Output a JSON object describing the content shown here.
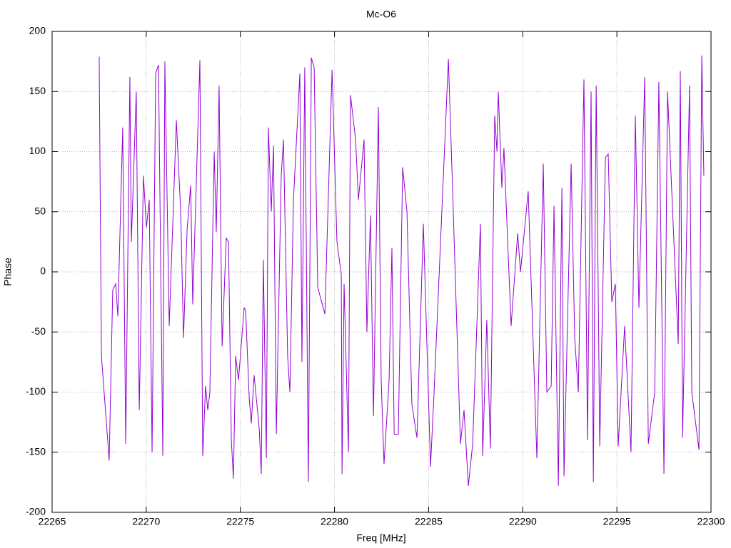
{
  "chart_data": {
    "type": "line",
    "title": "Mc-O6",
    "x_label": "Freq [MHz]",
    "y_label": "Phase",
    "color": "#9400d3",
    "grid": true,
    "xlim": [
      22265,
      22300
    ],
    "xticks": [
      22265,
      22270,
      22275,
      22280,
      22285,
      22290,
      22295,
      22300
    ],
    "ylim": [
      -200,
      200
    ],
    "yticks": [
      -200,
      -150,
      -100,
      -50,
      0,
      50,
      100,
      150,
      200
    ],
    "x": [
      22267.5,
      22267.62,
      22268.0,
      22268.03,
      22268.22,
      22268.38,
      22268.49,
      22268.75,
      22268.91,
      22269.13,
      22269.21,
      22269.47,
      22269.63,
      22269.85,
      22270.01,
      22270.16,
      22270.31,
      22270.5,
      22270.65,
      22270.88,
      22270.99,
      22271.22,
      22271.6,
      22271.83,
      22271.98,
      22272.17,
      22272.36,
      22272.47,
      22272.85,
      22273.0,
      22273.15,
      22273.27,
      22273.38,
      22273.61,
      22273.72,
      22273.87,
      22274.03,
      22274.25,
      22274.37,
      22274.52,
      22274.63,
      22274.75,
      22274.9,
      22275.2,
      22275.28,
      22275.47,
      22275.58,
      22275.73,
      22276.0,
      22276.11,
      22276.22,
      22276.38,
      22276.49,
      22276.64,
      22276.76,
      22276.91,
      22277.17,
      22277.29,
      22277.51,
      22277.63,
      22277.82,
      22278.16,
      22278.27,
      22278.42,
      22278.61,
      22278.77,
      22278.92,
      22279.11,
      22279.49,
      22279.87,
      22280.13,
      22280.36,
      22280.4,
      22280.51,
      22280.74,
      22280.85,
      22281.12,
      22281.27,
      22281.57,
      22281.72,
      22281.91,
      22282.07,
      22282.33,
      22282.48,
      22282.63,
      22282.9,
      22283.05,
      22283.17,
      22283.39,
      22283.62,
      22283.85,
      22284.11,
      22284.38,
      22284.72,
      22285.1,
      22285.29,
      22286.05,
      22286.31,
      22286.69,
      22286.88,
      22287.11,
      22287.34,
      22287.75,
      22287.87,
      22288.09,
      22288.28,
      22288.51,
      22288.63,
      22288.7,
      22288.89,
      22289.0,
      22289.38,
      22289.73,
      22289.88,
      22290.29,
      22290.75,
      22291.09,
      22291.28,
      22291.51,
      22291.66,
      22291.89,
      22292.08,
      22292.19,
      22292.57,
      22292.76,
      22292.95,
      22293.25,
      22293.44,
      22293.63,
      22293.75,
      22293.9,
      22294.09,
      22294.39,
      22294.54,
      22294.73,
      22294.92,
      22295.07,
      22295.41,
      22295.75,
      22295.98,
      22296.17,
      22296.48,
      22296.67,
      22297.01,
      22297.23,
      22297.5,
      22297.69,
      22298.26,
      22298.37,
      22298.49,
      22298.86,
      22298.98,
      22299.36,
      22299.51,
      22299.62
    ],
    "values": [
      179,
      -70,
      -150,
      -157,
      -15,
      -10,
      -37,
      120,
      -143,
      162,
      25,
      150,
      -115,
      80,
      37,
      60,
      -150,
      165,
      172,
      -153,
      175,
      -45,
      126,
      50,
      -55,
      35,
      72,
      -27,
      176,
      -153,
      -95,
      -115,
      -100,
      100,
      33,
      155,
      -62,
      28,
      25,
      -140,
      -172,
      -70,
      -90,
      -30,
      -32,
      -105,
      -126,
      -86,
      -130,
      -168,
      10,
      -155,
      120,
      50,
      105,
      -135,
      80,
      110,
      -70,
      -100,
      60,
      165,
      -75,
      170,
      -175,
      178,
      170,
      -13,
      -35,
      168,
      25,
      -2,
      -168,
      -10,
      -150,
      147,
      110,
      60,
      110,
      -50,
      47,
      -120,
      137,
      -90,
      -160,
      -90,
      20,
      -135,
      -135,
      87,
      50,
      -110,
      -138,
      40,
      -162,
      -100,
      177,
      50,
      -143,
      -115,
      -178,
      -143,
      40,
      -153,
      -40,
      -147,
      130,
      100,
      150,
      70,
      103,
      -45,
      32,
      0,
      67,
      -155,
      90,
      -100,
      -95,
      55,
      -178,
      70,
      -170,
      90,
      -55,
      -100,
      160,
      -140,
      150,
      -175,
      155,
      -145,
      95,
      98,
      -25,
      -10,
      -145,
      -45,
      -150,
      130,
      -30,
      162,
      -143,
      -100,
      158,
      -168,
      150,
      -60,
      167,
      -138,
      155,
      -100,
      -148,
      180,
      80
    ]
  }
}
